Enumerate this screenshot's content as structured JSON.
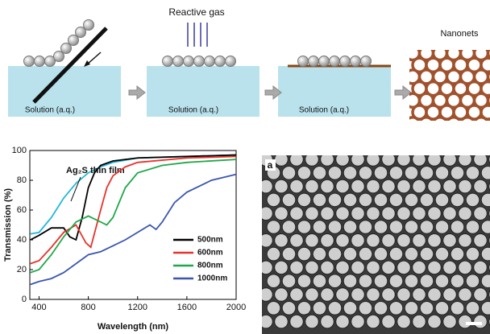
{
  "diagram": {
    "gas_label": "Reactive gas",
    "result_label": "Nanonets",
    "solution_labels": [
      "Solution (a.q.)",
      "Solution (a.q.)",
      "Solution (a.q.)"
    ]
  },
  "image": {
    "panel_label": "a"
  },
  "chart_data": {
    "type": "line",
    "x_label": "Wavelength (nm)",
    "y_label": "Transmission (%)",
    "xlim": [
      325,
      2000
    ],
    "ylim": [
      0,
      100
    ],
    "xticks": [
      400,
      800,
      1200,
      1600,
      2000
    ],
    "yticks": [
      0,
      20,
      40,
      60,
      80,
      100
    ],
    "series": [
      {
        "name": "Ag₂S thin film",
        "color": "#22b8d8",
        "x": [
          330,
          400,
          500,
          600,
          700,
          800,
          900,
          1000,
          1200,
          1600,
          2000
        ],
        "values": [
          44,
          45,
          55,
          68,
          78,
          85,
          89,
          92,
          95,
          96,
          97
        ]
      },
      {
        "name": "500nm",
        "color": "#000000",
        "x": [
          330,
          400,
          500,
          600,
          650,
          700,
          750,
          800,
          850,
          900,
          1000,
          1200,
          2000
        ],
        "values": [
          40,
          43,
          48,
          48,
          42,
          40,
          55,
          75,
          85,
          90,
          93,
          95,
          97
        ]
      },
      {
        "name": "600nm",
        "color": "#e8322a",
        "x": [
          330,
          400,
          500,
          600,
          700,
          780,
          820,
          900,
          950,
          1000,
          1100,
          1200,
          1600,
          2000
        ],
        "values": [
          24,
          26,
          35,
          45,
          50,
          38,
          35,
          60,
          75,
          83,
          89,
          92,
          95,
          96
        ]
      },
      {
        "name": "800nm",
        "color": "#1fa84a",
        "x": [
          330,
          400,
          500,
          600,
          700,
          800,
          900,
          950,
          1000,
          1050,
          1100,
          1200,
          1400,
          1600,
          2000
        ],
        "values": [
          18,
          20,
          30,
          42,
          52,
          56,
          52,
          50,
          55,
          65,
          75,
          85,
          90,
          92,
          94
        ]
      },
      {
        "name": "1000nm",
        "color": "#3a56b0",
        "x": [
          330,
          400,
          500,
          600,
          700,
          800,
          900,
          1000,
          1100,
          1200,
          1300,
          1350,
          1400,
          1500,
          1600,
          1800,
          2000
        ],
        "values": [
          10,
          12,
          14,
          18,
          24,
          30,
          32,
          36,
          40,
          45,
          50,
          47,
          52,
          65,
          72,
          80,
          84
        ]
      }
    ]
  }
}
